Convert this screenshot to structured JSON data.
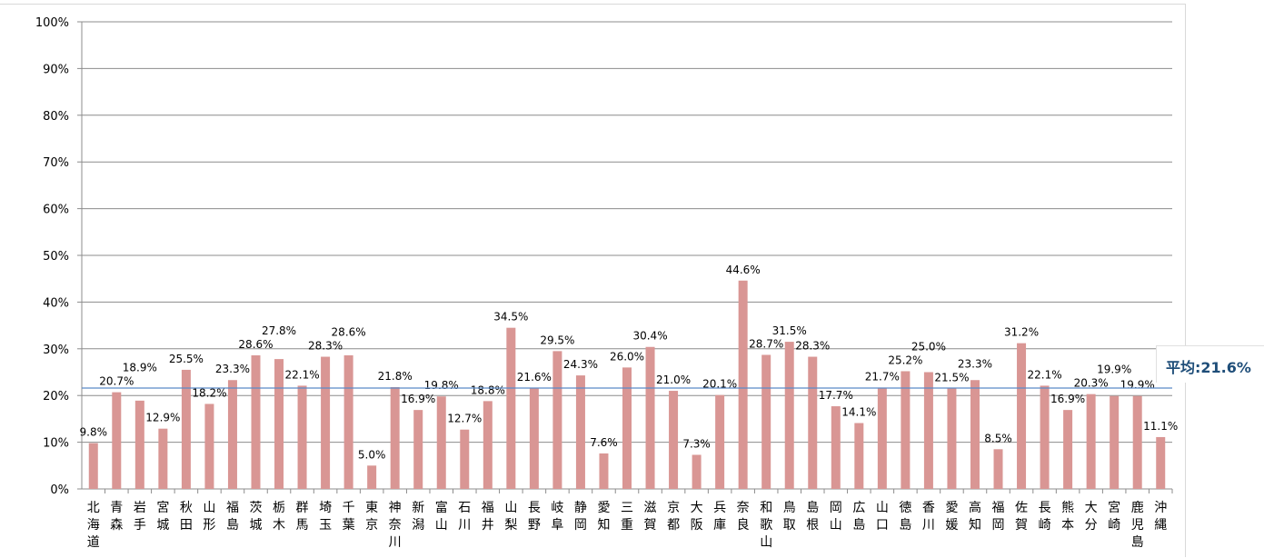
{
  "chart_data": {
    "type": "bar",
    "title": "",
    "xlabel": "",
    "ylabel": "",
    "ylim": [
      0,
      100
    ],
    "yticks": [
      "0%",
      "10%",
      "20%",
      "30%",
      "40%",
      "50%",
      "60%",
      "70%",
      "80%",
      "90%",
      "100%"
    ],
    "grid": true,
    "categories": [
      "北海道",
      "青森",
      "岩手",
      "宮城",
      "秋田",
      "山形",
      "福島",
      "茨城",
      "栃木",
      "群馬",
      "埼玉",
      "千葉",
      "東京",
      "神奈川",
      "新潟",
      "富山",
      "石川",
      "福井",
      "山梨",
      "長野",
      "岐阜",
      "静岡",
      "愛知",
      "三重",
      "滋賀",
      "京都",
      "大阪",
      "兵庫",
      "奈良",
      "和歌山",
      "鳥取",
      "島根",
      "岡山",
      "広島",
      "山口",
      "徳島",
      "香川",
      "愛媛",
      "高知",
      "福岡",
      "佐賀",
      "長崎",
      "熊本",
      "大分",
      "宮崎",
      "鹿児島",
      "沖縄"
    ],
    "values": [
      9.8,
      20.7,
      18.9,
      12.9,
      25.5,
      18.2,
      23.3,
      28.6,
      27.8,
      22.1,
      28.3,
      28.6,
      5.0,
      21.8,
      16.9,
      19.8,
      12.7,
      18.8,
      34.5,
      21.6,
      29.5,
      24.3,
      7.6,
      26.0,
      30.4,
      21.0,
      7.3,
      20.1,
      44.6,
      28.7,
      31.5,
      28.3,
      17.7,
      14.1,
      21.7,
      25.2,
      25.0,
      21.5,
      23.3,
      8.5,
      31.2,
      22.1,
      16.9,
      20.3,
      19.9,
      19.9,
      11.1
    ],
    "data_labels": [
      "9.8%",
      "20.7%",
      "18.9%",
      "12.9%",
      "25.5%",
      "18.2%",
      "23.3%",
      "28.6%",
      "27.8%",
      "22.1%",
      "28.3%",
      "28.6%",
      "5.0%",
      "21.8%",
      "16.9%",
      "19.8%",
      "12.7%",
      "18.8%",
      "34.5%",
      "21.6%",
      "29.5%",
      "24.3%",
      "7.6%",
      "26.0%",
      "30.4%",
      "21.0%",
      "7.3%",
      "20.1%",
      "44.6%",
      "28.7%",
      "31.5%",
      "28.3%",
      "17.7%",
      "14.1%",
      "21.7%",
      "25.2%",
      "25.0%",
      "21.5%",
      "23.3%",
      "8.5%",
      "31.2%",
      "22.1%",
      "16.9%",
      "20.3%",
      "19.9%",
      "19.9%",
      "11.1%"
    ],
    "average": {
      "value": 21.6,
      "label": "平均:21.6%"
    },
    "colors": {
      "bar": "#d99694",
      "average_line": "#5b8ac6",
      "average_label": "#1f4e79",
      "grid": "#8c8c8c"
    }
  }
}
